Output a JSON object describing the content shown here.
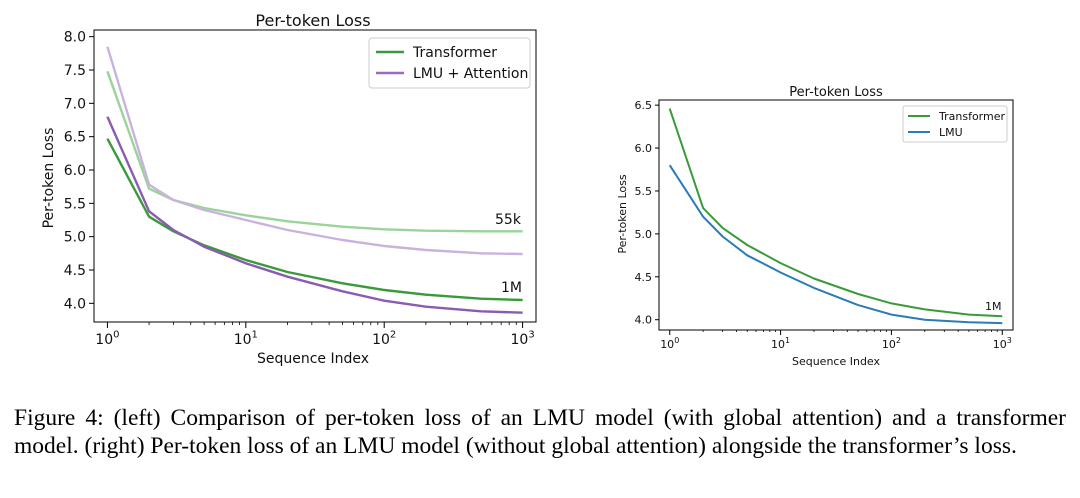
{
  "chart_data": [
    {
      "type": "line",
      "title": "Per-token Loss",
      "xlabel": "Sequence Index",
      "ylabel": "Per-token Loss",
      "xscale": "log",
      "xlim": [
        0.8,
        1250
      ],
      "ylim": [
        3.72,
        8.1
      ],
      "yticks": [
        4.0,
        4.5,
        5.0,
        5.5,
        6.0,
        6.5,
        7.0,
        7.5,
        8.0
      ],
      "ytick_labels": [
        "4.0",
        "4.5",
        "5.0",
        "5.5",
        "6.0",
        "6.5",
        "7.0",
        "7.5",
        "8.0"
      ],
      "xticks": [
        {
          "base": "10",
          "exp": "0",
          "value": 1
        },
        {
          "base": "10",
          "exp": "1",
          "value": 10
        },
        {
          "base": "10",
          "exp": "2",
          "value": 100
        },
        {
          "base": "10",
          "exp": "3",
          "value": 1000
        }
      ],
      "legend": {
        "position": "top-right",
        "entries": [
          {
            "label": "Transformer",
            "color": "#3a9a3a"
          },
          {
            "label": "LMU + Attention",
            "color": "#9b6bbf"
          }
        ]
      },
      "annotations": [
        "55k",
        "1M"
      ],
      "series": [
        {
          "name": "Transformer 55k",
          "color": "#9bd39b",
          "x": [
            1,
            2,
            3,
            5,
            10,
            20,
            50,
            100,
            200,
            500,
            1000
          ],
          "y": [
            7.48,
            5.72,
            5.55,
            5.43,
            5.32,
            5.23,
            5.15,
            5.11,
            5.09,
            5.08,
            5.08
          ]
        },
        {
          "name": "LMU + Attention 55k",
          "color": "#c9b3de",
          "x": [
            1,
            2,
            3,
            5,
            10,
            20,
            50,
            100,
            200,
            500,
            1000
          ],
          "y": [
            7.85,
            5.78,
            5.55,
            5.4,
            5.25,
            5.1,
            4.95,
            4.86,
            4.8,
            4.75,
            4.74
          ]
        },
        {
          "name": "Transformer 1M",
          "color": "#3a9a3a",
          "x": [
            1,
            2,
            3,
            5,
            10,
            20,
            50,
            100,
            200,
            500,
            1000
          ],
          "y": [
            6.47,
            5.3,
            5.08,
            4.87,
            4.65,
            4.47,
            4.3,
            4.2,
            4.13,
            4.07,
            4.05
          ]
        },
        {
          "name": "LMU + Attention 1M",
          "color": "#8a5bb0",
          "x": [
            1,
            2,
            3,
            5,
            10,
            20,
            50,
            100,
            200,
            500,
            1000
          ],
          "y": [
            6.8,
            5.38,
            5.1,
            4.85,
            4.6,
            4.4,
            4.18,
            4.04,
            3.95,
            3.88,
            3.86
          ]
        }
      ]
    },
    {
      "type": "line",
      "title": "Per-token Loss",
      "xlabel": "Sequence Index",
      "ylabel": "Per-token Loss",
      "xscale": "log",
      "xlim": [
        0.8,
        1250
      ],
      "ylim": [
        3.88,
        6.56
      ],
      "yticks": [
        4.0,
        4.5,
        5.0,
        5.5,
        6.0,
        6.5
      ],
      "ytick_labels": [
        "4.0",
        "4.5",
        "5.0",
        "5.5",
        "6.0",
        "6.5"
      ],
      "xticks": [
        {
          "base": "10",
          "exp": "0",
          "value": 1
        },
        {
          "base": "10",
          "exp": "1",
          "value": 10
        },
        {
          "base": "10",
          "exp": "2",
          "value": 100
        },
        {
          "base": "10",
          "exp": "3",
          "value": 1000
        }
      ],
      "legend": {
        "position": "top-right",
        "entries": [
          {
            "label": "Transformer",
            "color": "#3a9a3a"
          },
          {
            "label": "LMU",
            "color": "#2b7bb9"
          }
        ]
      },
      "annotations": [
        "1M"
      ],
      "series": [
        {
          "name": "Transformer",
          "color": "#3a9a3a",
          "x": [
            1,
            2,
            3,
            5,
            10,
            20,
            50,
            100,
            200,
            500,
            1000
          ],
          "y": [
            6.46,
            5.3,
            5.07,
            4.87,
            4.66,
            4.48,
            4.3,
            4.19,
            4.12,
            4.06,
            4.04
          ]
        },
        {
          "name": "LMU",
          "color": "#2b7bb9",
          "x": [
            1,
            2,
            3,
            5,
            10,
            20,
            50,
            100,
            200,
            500,
            1000
          ],
          "y": [
            5.8,
            5.2,
            4.97,
            4.75,
            4.55,
            4.37,
            4.17,
            4.06,
            4.0,
            3.97,
            3.96
          ]
        }
      ]
    }
  ],
  "caption": "Figure 4: (left) Comparison of per-token loss of an LMU model (with global attention) and a transformer model. (right) Per-token loss of an LMU model (without global attention) alongside the transformer’s loss."
}
